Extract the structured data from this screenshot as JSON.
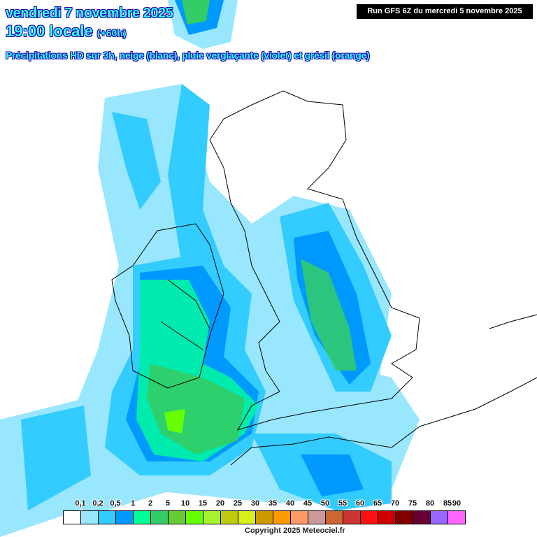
{
  "header": {
    "date": "vendredi 7 novembre 2025",
    "time": "19:00 locale",
    "lead": "(+60h)",
    "description": "Précipitations HD sur 3h, neige (blanc), pluie verglaçante (violet) et grésil (orange)",
    "run": "Run GFS 6Z du mercredi 5 novembre 2025"
  },
  "legend": {
    "labels": [
      "0,1",
      "0,2",
      "0,5",
      "1",
      "2",
      "5",
      "10",
      "15",
      "20",
      "25",
      "30",
      "35",
      "40",
      "45",
      "50",
      "55",
      "60",
      "65",
      "70",
      "75",
      "80",
      "85",
      "90"
    ],
    "colors": [
      "#ffffff",
      "#99e6ff",
      "#33ccff",
      "#0099ff",
      "#00ff99",
      "#33cc66",
      "#66cc33",
      "#66ff00",
      "#a6f22e",
      "#bfcc0d",
      "#d9f01a",
      "#cc9900",
      "#ff9900",
      "#ff9966",
      "#cc9999",
      "#cc6633",
      "#cc3333",
      "#ff1111",
      "#cc0000",
      "#800000",
      "#660033",
      "#9966ff",
      "#ff66ff"
    ]
  },
  "copyright": "Copyright 2025 Meteociel.fr"
}
